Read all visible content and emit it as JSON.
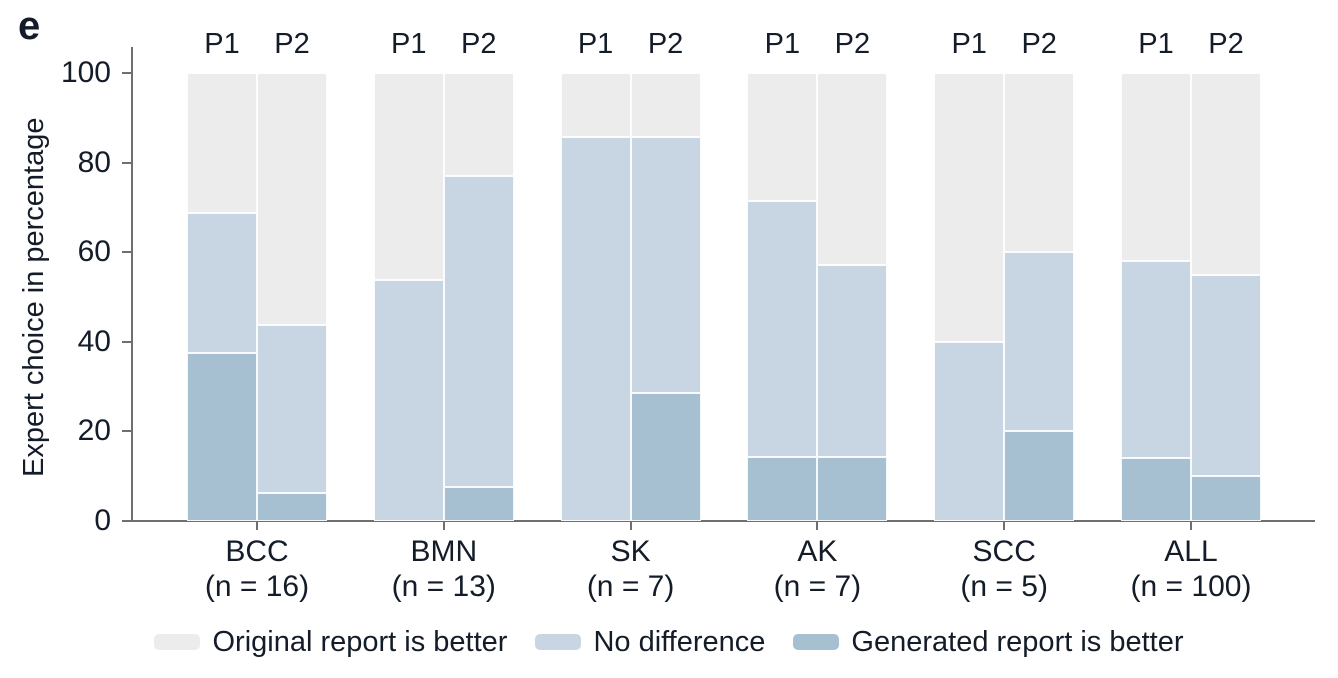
{
  "panel_label": "e",
  "colors": {
    "original_better": "#ececec",
    "no_difference": "#c7d6e2",
    "generated_better": "#a6bfd1",
    "axis": "#6f6f6f",
    "text": "#131c28"
  },
  "chart_data": {
    "type": "bar",
    "stacked": true,
    "orientation": "vertical",
    "ylabel": "Expert choice in percentage",
    "ylim": [
      0,
      100
    ],
    "yticks": [
      0,
      20,
      40,
      60,
      80,
      100
    ],
    "grid": false,
    "legend_position": "bottom",
    "bar_labels": [
      "P1",
      "P2"
    ],
    "series_order_bottom_to_top": [
      "generated_better",
      "no_difference",
      "original_better"
    ],
    "legend": [
      {
        "key": "original_better",
        "label": "Original report is better",
        "color": "#ececec"
      },
      {
        "key": "no_difference",
        "label": "No difference",
        "color": "#c7d6e2"
      },
      {
        "key": "generated_better",
        "label": "Generated report is better",
        "color": "#a6bfd1"
      }
    ],
    "groups": [
      {
        "category": "BCC",
        "n_label": "(n = 16)",
        "bars": [
          {
            "label": "P1",
            "generated_better": 37.5,
            "no_difference": 31.25,
            "original_better": 31.25
          },
          {
            "label": "P2",
            "generated_better": 6.25,
            "no_difference": 37.5,
            "original_better": 56.25
          }
        ]
      },
      {
        "category": "BMN",
        "n_label": "(n = 13)",
        "bars": [
          {
            "label": "P1",
            "generated_better": 0,
            "no_difference": 53.8,
            "original_better": 46.2
          },
          {
            "label": "P2",
            "generated_better": 7.7,
            "no_difference": 69.2,
            "original_better": 23.1
          }
        ]
      },
      {
        "category": "SK",
        "n_label": "(n = 7)",
        "bars": [
          {
            "label": "P1",
            "generated_better": 0,
            "no_difference": 85.7,
            "original_better": 14.3
          },
          {
            "label": "P2",
            "generated_better": 28.6,
            "no_difference": 57.1,
            "original_better": 14.3
          }
        ]
      },
      {
        "category": "AK",
        "n_label": "(n = 7)",
        "bars": [
          {
            "label": "P1",
            "generated_better": 14.3,
            "no_difference": 57.1,
            "original_better": 28.6
          },
          {
            "label": "P2",
            "generated_better": 14.3,
            "no_difference": 42.9,
            "original_better": 42.9
          }
        ]
      },
      {
        "category": "SCC",
        "n_label": "(n = 5)",
        "bars": [
          {
            "label": "P1",
            "generated_better": 0,
            "no_difference": 40,
            "original_better": 60
          },
          {
            "label": "P2",
            "generated_better": 20,
            "no_difference": 40,
            "original_better": 40
          }
        ]
      },
      {
        "category": "ALL",
        "n_label": "(n = 100)",
        "bars": [
          {
            "label": "P1",
            "generated_better": 14,
            "no_difference": 44,
            "original_better": 42
          },
          {
            "label": "P2",
            "generated_better": 10,
            "no_difference": 45,
            "original_better": 45
          }
        ]
      }
    ]
  }
}
